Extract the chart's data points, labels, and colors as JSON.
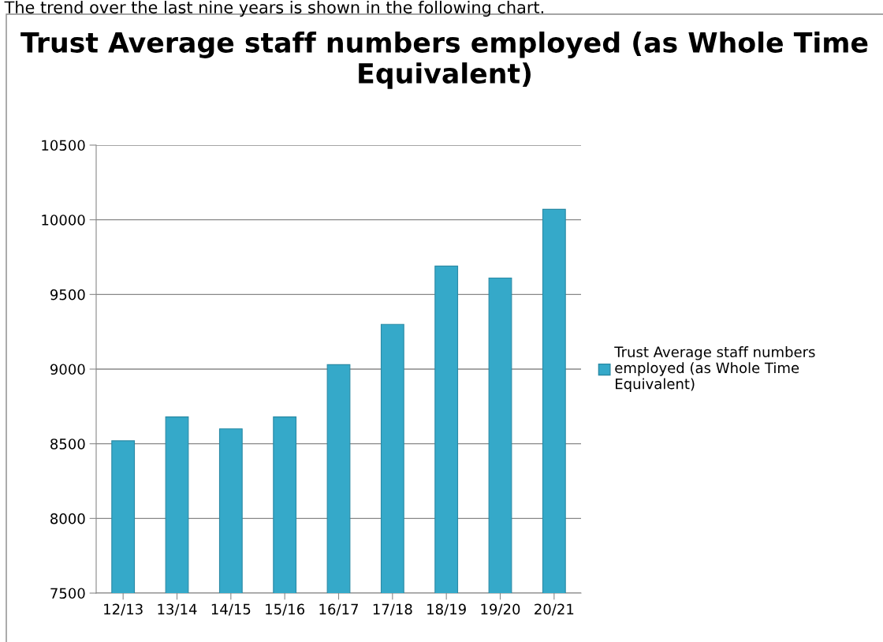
{
  "chart_data": {
    "type": "bar",
    "title": "Trust Average staff numbers employed (as Whole Time Equivalent)",
    "annotations": [
      "The trend over the last nine years is shown in the following chart."
    ],
    "categories": [
      "12/13",
      "13/14",
      "14/15",
      "15/16",
      "16/17",
      "17/18",
      "18/19",
      "19/20",
      "20/21"
    ],
    "series": [
      {
        "name": "Trust Average staff numbers employed (as Whole Time Equivalent)",
        "color": "#35a9c9",
        "values": [
          8520,
          8680,
          8600,
          8680,
          9030,
          9300,
          9690,
          9610,
          10070
        ]
      }
    ],
    "ylim": [
      7500,
      10500
    ],
    "yticks": [
      7500,
      8000,
      8500,
      9000,
      9500,
      10000,
      10500
    ],
    "grid": "y",
    "legend": "right"
  }
}
